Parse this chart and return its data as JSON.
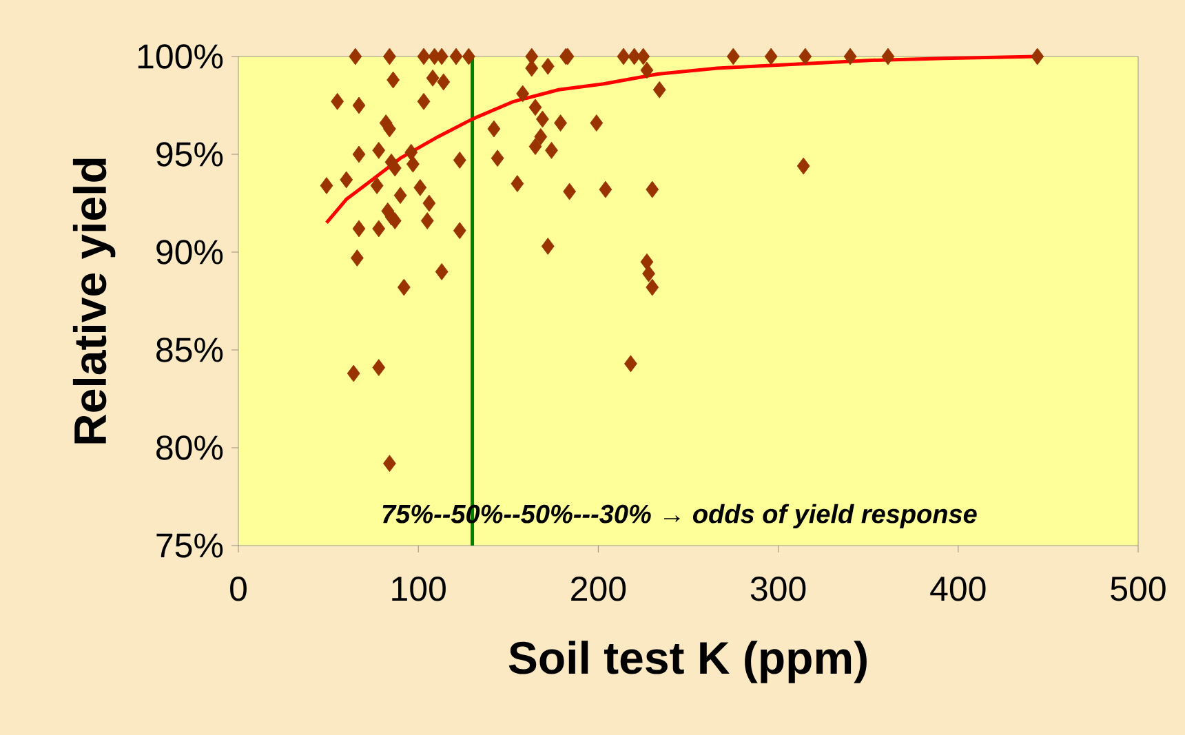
{
  "chart_data": {
    "type": "scatter",
    "xlabel": "Soil test K (ppm)",
    "ylabel": "Relative yield",
    "xlim": [
      0,
      500
    ],
    "ylim": [
      75,
      100
    ],
    "xticks": [
      0,
      100,
      200,
      300,
      400,
      500
    ],
    "yticks": [
      {
        "value": 75,
        "label": "75%"
      },
      {
        "value": 80,
        "label": "80%"
      },
      {
        "value": 85,
        "label": "85%"
      },
      {
        "value": 90,
        "label": "90%"
      },
      {
        "value": 95,
        "label": "95%"
      },
      {
        "value": 100,
        "label": "100%"
      }
    ],
    "marker": "diamond",
    "series": [
      {
        "color": "#993300",
        "x": [
          65,
          84,
          103,
          109,
          113,
          121,
          128,
          163,
          182,
          183,
          214,
          220,
          225,
          275,
          296,
          315,
          340,
          361,
          444,
          55,
          67,
          86,
          108,
          114,
          103,
          163,
          172,
          227,
          234,
          158,
          165,
          169,
          179,
          199,
          142,
          82,
          84,
          168,
          165,
          174,
          78,
          67,
          96,
          85,
          97,
          87,
          123,
          144,
          314,
          49,
          60,
          77,
          101,
          155,
          184,
          204,
          230,
          90,
          106,
          83,
          85,
          87,
          105,
          67,
          78,
          123,
          172,
          66,
          113,
          227,
          228,
          230,
          92,
          64,
          78,
          218,
          84
        ],
        "values": [
          100,
          100,
          100,
          100,
          100,
          100,
          100,
          100,
          100,
          100,
          100,
          100,
          100,
          100,
          100,
          100,
          100,
          100,
          100,
          97.7,
          97.5,
          98.8,
          98.9,
          98.7,
          97.7,
          99.4,
          99.5,
          99.3,
          98.3,
          98.1,
          97.4,
          96.8,
          96.6,
          96.6,
          96.3,
          96.6,
          96.3,
          95.9,
          95.4,
          95.2,
          95.2,
          95.0,
          95.1,
          94.6,
          94.5,
          94.3,
          94.7,
          94.8,
          94.4,
          93.4,
          93.7,
          93.4,
          93.3,
          93.5,
          93.1,
          93.2,
          93.2,
          92.9,
          92.5,
          92.1,
          91.8,
          91.6,
          91.6,
          91.2,
          91.2,
          91.1,
          90.3,
          89.7,
          89.0,
          89.5,
          88.9,
          88.2,
          88.2,
          83.8,
          84.1,
          84.3,
          79.2
        ]
      },
      {
        "type": "line",
        "color": "#ff0000",
        "marker": "none",
        "x": [
          49,
          60,
          73,
          90,
          111,
          130,
          153,
          178,
          203,
          233,
          266,
          308,
          350,
          392,
          444
        ],
        "values": [
          91.5,
          92.7,
          93.6,
          94.8,
          95.9,
          96.8,
          97.7,
          98.3,
          98.6,
          99.1,
          99.4,
          99.6,
          99.8,
          99.9,
          100
        ]
      }
    ],
    "ref_lines": [
      {
        "axis": "x",
        "value": 130,
        "color": "#008000"
      }
    ],
    "annotations": [
      "**75%--50%--50%---30%  → odds of yield response**"
    ]
  }
}
